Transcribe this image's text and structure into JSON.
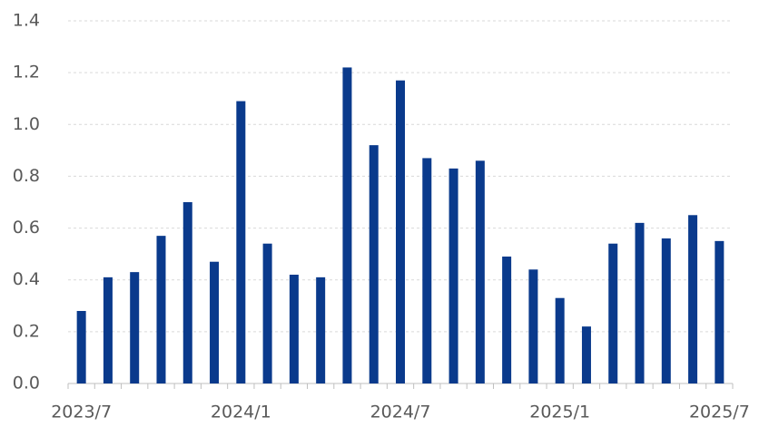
{
  "chart_data": {
    "type": "bar",
    "categories": [
      "2023/7",
      null,
      null,
      null,
      null,
      null,
      "2024/1",
      null,
      null,
      null,
      null,
      null,
      "2024/7",
      null,
      null,
      null,
      null,
      null,
      "2025/1",
      null,
      null,
      null,
      null,
      null,
      "2025/7"
    ],
    "values": [
      0.28,
      0.41,
      0.43,
      0.57,
      0.7,
      0.47,
      1.09,
      0.54,
      0.42,
      0.41,
      1.22,
      0.92,
      1.17,
      0.87,
      0.83,
      0.86,
      0.49,
      0.44,
      0.33,
      0.22,
      0.54,
      0.62,
      0.56,
      0.65,
      0.55
    ],
    "color": "#0a3a8c",
    "ylim": [
      0,
      1.4
    ],
    "yticks": [
      {
        "value": 0,
        "label": "0.0"
      },
      0.2,
      0.4,
      0.6,
      0.8,
      {
        "value": 1,
        "label": "1.0"
      },
      1.2,
      1.4
    ],
    "grid": true
  }
}
